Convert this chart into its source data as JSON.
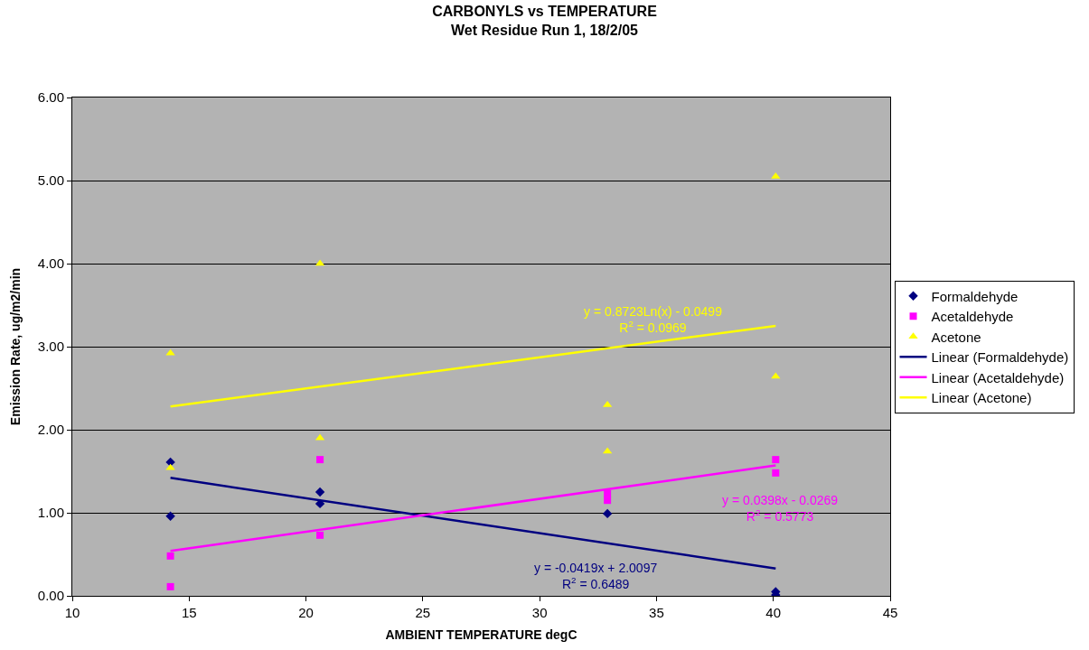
{
  "chart_data": {
    "type": "scatter",
    "title": "CARBONYLS vs TEMPERATURE",
    "subtitle": "Wet Residue Run 1, 18/2/05",
    "xlabel": "AMBIENT TEMPERATURE degC",
    "ylabel": "Emission Rate, ug/m2/min",
    "xlim": [
      10,
      45
    ],
    "xticks": [
      10,
      15,
      20,
      25,
      30,
      35,
      40,
      45
    ],
    "ylim": [
      0,
      6
    ],
    "yticks": [
      {
        "value": 0,
        "label": "0.00"
      },
      {
        "value": 1,
        "label": "1.00"
      },
      {
        "value": 2,
        "label": "2.00"
      },
      {
        "value": 3,
        "label": "3.00"
      },
      {
        "value": 4,
        "label": "4.00"
      },
      {
        "value": 5,
        "label": "5.00"
      },
      {
        "value": 6,
        "label": "6.00"
      }
    ],
    "grid": "y",
    "legend": "right",
    "series": [
      {
        "name": "Formaldehyde",
        "marker": "diamond",
        "color": "#000080",
        "x": [
          14.2,
          14.2,
          20.6,
          20.6,
          32.9,
          40.1,
          40.1
        ],
        "values": [
          1.61,
          0.96,
          1.25,
          1.11,
          0.99,
          0.05,
          0.01
        ]
      },
      {
        "name": "Acetaldehyde",
        "marker": "square",
        "color": "#ff00ff",
        "x": [
          14.2,
          14.2,
          20.6,
          20.6,
          32.9,
          32.9,
          40.1,
          40.1
        ],
        "values": [
          0.48,
          0.11,
          1.64,
          0.73,
          1.23,
          1.15,
          1.64,
          1.48
        ]
      },
      {
        "name": "Acetone",
        "marker": "triangle",
        "color": "#ffff00",
        "x": [
          14.2,
          14.2,
          20.6,
          20.6,
          32.9,
          32.9,
          40.1,
          40.1
        ],
        "values": [
          2.92,
          1.54,
          4.0,
          1.9,
          2.3,
          1.74,
          5.05,
          2.64
        ]
      },
      {
        "name": "Linear (Formaldehyde)",
        "type": "line",
        "color": "#000080",
        "x": [
          14.2,
          40.1
        ],
        "values": [
          1.42,
          0.33
        ]
      },
      {
        "name": "Linear (Acetaldehyde)",
        "type": "line",
        "color": "#ff00ff",
        "x": [
          14.2,
          40.1
        ],
        "values": [
          0.54,
          1.57
        ]
      },
      {
        "name": "Linear (Acetone)",
        "type": "line",
        "color": "#ffff00",
        "x": [
          14.2,
          40.1
        ],
        "values": [
          2.28,
          3.25
        ]
      }
    ],
    "annotations": [
      "y = -0.0419x + 2.0097\nR$^{2}$ = 0.6489",
      "y = 0.0398x - 0.0269\nR$^{2}$ = 0.5773",
      "y = 0.8723Ln(x) - 0.0499\nR$^{2}$ = 0.0969"
    ]
  }
}
